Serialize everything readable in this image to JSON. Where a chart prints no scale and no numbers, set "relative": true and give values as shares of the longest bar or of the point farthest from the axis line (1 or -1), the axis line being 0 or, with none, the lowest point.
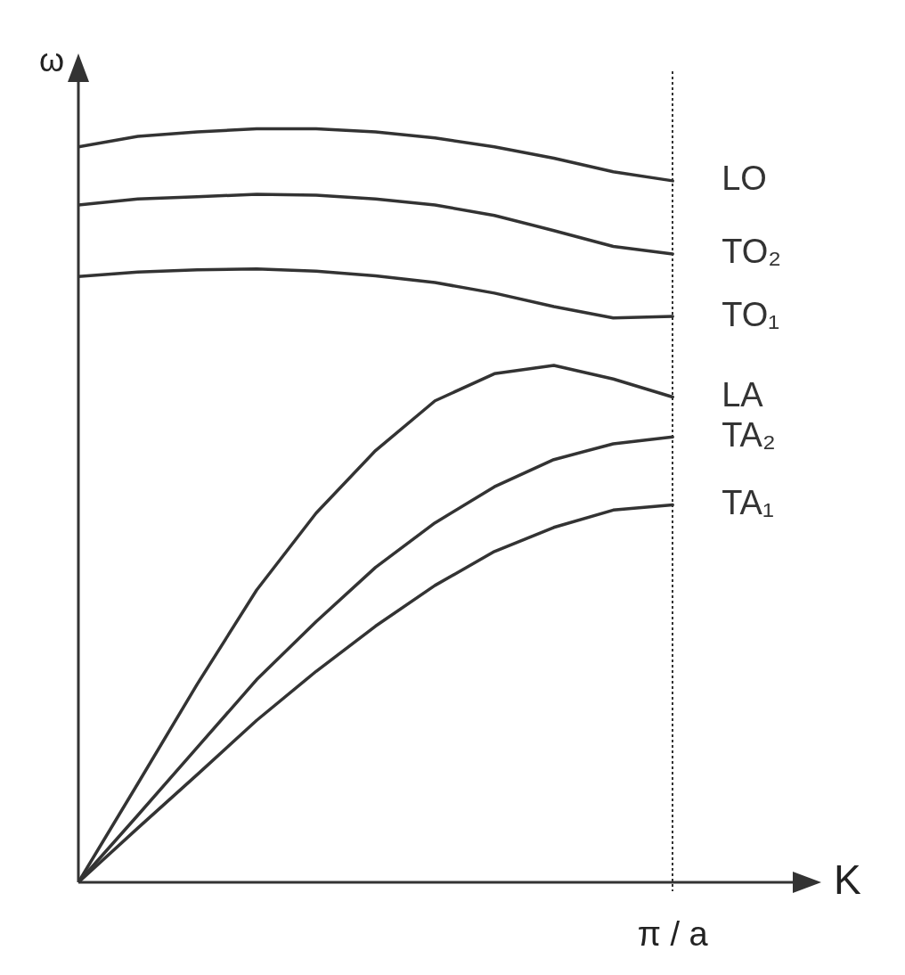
{
  "chart_data": {
    "type": "line",
    "xlabel": "K",
    "ylabel": "ω",
    "relative": true,
    "marker": "none",
    "line_style": "solid",
    "categories": [
      null,
      null,
      null,
      null,
      null,
      null,
      null,
      null,
      null,
      null,
      null
    ],
    "annotations": [
      "π / a"
    ],
    "series": [
      {
        "name": "LO",
        "color": "#333333",
        "values": [
          0.976,
          0.99,
          0.996,
          1,
          1,
          0.996,
          0.988,
          0.976,
          0.961,
          0.943,
          0.931
        ]
      },
      {
        "name": "TO₂",
        "color": "#333333",
        "values": [
          0.899,
          0.907,
          0.91,
          0.913,
          0.912,
          0.907,
          0.899,
          0.885,
          0.865,
          0.844,
          0.834
        ]
      },
      {
        "name": "TO₁",
        "color": "#333333",
        "values": [
          0.804,
          0.81,
          0.813,
          0.814,
          0.811,
          0.805,
          0.796,
          0.782,
          0.764,
          0.749,
          0.751
        ]
      },
      {
        "name": "LA",
        "color": "#333333",
        "values": [
          0,
          0.131,
          0.263,
          0.388,
          0.49,
          0.573,
          0.639,
          0.675,
          0.686,
          0.668,
          0.644
        ]
      },
      {
        "name": "TA₂",
        "color": "#333333",
        "values": [
          0,
          0.089,
          0.179,
          0.269,
          0.346,
          0.418,
          0.477,
          0.525,
          0.561,
          0.582,
          0.591
        ]
      },
      {
        "name": "TA₁",
        "color": "#333333",
        "values": [
          0,
          0.072,
          0.143,
          0.215,
          0.28,
          0.34,
          0.394,
          0.439,
          0.471,
          0.494,
          0.501
        ]
      }
    ]
  }
}
